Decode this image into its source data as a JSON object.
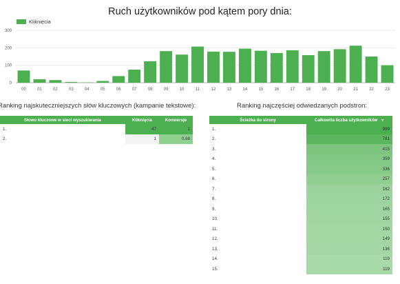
{
  "chart_data": {
    "type": "bar",
    "title": "Ruch użytkowników pod kątem pory dnia:",
    "legend": [
      "Kliknięcia"
    ],
    "categories": [
      "00",
      "01",
      "02",
      "03",
      "04",
      "05",
      "06",
      "07",
      "08",
      "09",
      "10",
      "11",
      "12",
      "13",
      "14",
      "15",
      "16",
      "17",
      "18",
      "19",
      "20",
      "21",
      "22",
      "23"
    ],
    "series": [
      {
        "name": "Kliknięcia",
        "values": [
          70,
          20,
          15,
          4,
          2,
          10,
          38,
          75,
          123,
          181,
          161,
          207,
          178,
          177,
          195,
          183,
          170,
          186,
          158,
          181,
          192,
          212,
          150,
          100
        ]
      }
    ],
    "ylim": [
      0,
      300
    ],
    "yticks": [
      0,
      100,
      200,
      300
    ],
    "color": "#4caf50",
    "grid": true,
    "legend_position": "top-left"
  },
  "keywords": {
    "title": "Ranking najskuteczniejszych słów kluczowych (kampanie tekstowe):",
    "headers": [
      "Słowo kluczowe w sieci wyszukiwania",
      "Kliknięcia",
      "Konwersje"
    ],
    "rows": [
      {
        "idx": "1.",
        "keyword": "",
        "clicks": "47",
        "conv": "1"
      },
      {
        "idx": "2.",
        "keyword": "",
        "clicks": "1",
        "conv": "0,68"
      }
    ]
  },
  "pages": {
    "title": "Ranking najczęściej odwiedzanych podstron:",
    "headers": [
      "Ścieżka do strony",
      "Całkowita liczba użytkowników"
    ],
    "sort_indicator": "▼",
    "rows": [
      {
        "idx": "1.",
        "path": "",
        "users": "999"
      },
      {
        "idx": "2.",
        "path": "",
        "users": "781"
      },
      {
        "idx": "3.",
        "path": "",
        "users": "415"
      },
      {
        "idx": "4.",
        "path": "",
        "users": "359"
      },
      {
        "idx": "5.",
        "path": "",
        "users": "336"
      },
      {
        "idx": "6.",
        "path": "",
        "users": "257"
      },
      {
        "idx": "7.",
        "path": "",
        "users": "182"
      },
      {
        "idx": "8.",
        "path": "",
        "users": "172"
      },
      {
        "idx": "9.",
        "path": "",
        "users": "165"
      },
      {
        "idx": "10.",
        "path": "",
        "users": "155"
      },
      {
        "idx": "11.",
        "path": "",
        "users": "150"
      },
      {
        "idx": "12.",
        "path": "",
        "users": "149"
      },
      {
        "idx": "13.",
        "path": "",
        "users": "136"
      },
      {
        "idx": "14.",
        "path": "",
        "users": "119"
      },
      {
        "idx": "15.",
        "path": "",
        "users": "119"
      }
    ]
  }
}
